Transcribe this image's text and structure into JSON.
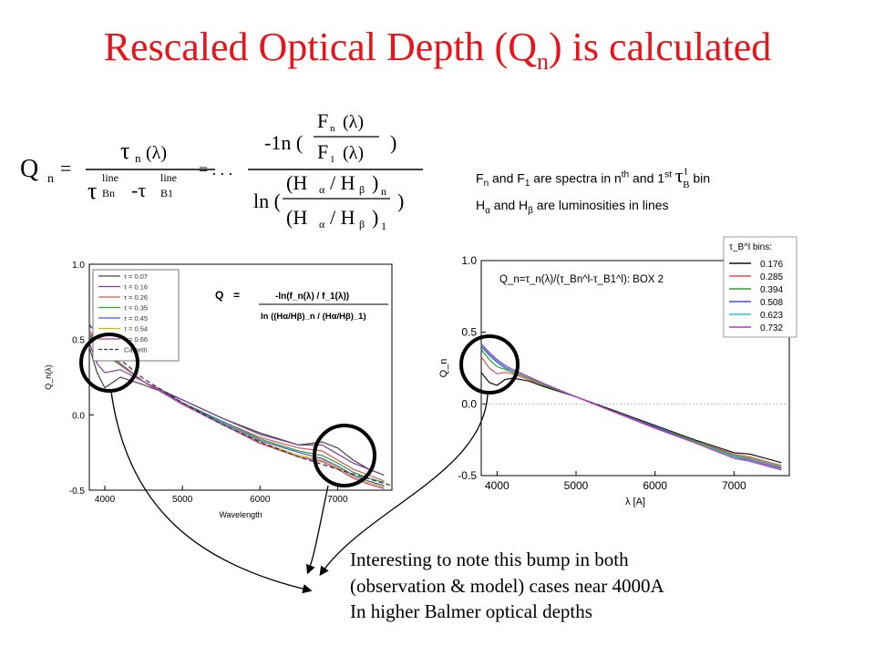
{
  "slide": {
    "title_main": "Rescaled Optical Depth (Q",
    "title_sub": "n",
    "title_end": ") is calculated"
  },
  "formula": {
    "lhs": "Q",
    "lhs_sub": "n",
    "num1": "τ",
    "num1_sub": "n",
    "num1_arg": "(λ)",
    "den1_a": "τ",
    "den1_a_sup": "line",
    "den1_a_sub": "Bn",
    "den1_minus": "-τ",
    "den1_b_sup": "line",
    "den1_b_sub": "B1",
    "eq": "=",
    "eq_dots": "= . . .",
    "num2_prefix": "-1n (",
    "num2_top": "F",
    "num2_top_sub": "n",
    "num2_top_arg": "(λ)",
    "num2_bot": "F",
    "num2_bot_sub": "1",
    "num2_bot_arg": "(λ)",
    "num2_close": ")",
    "den2_prefix": "ln (",
    "den2_top": "(H",
    "den2_top_a": "α",
    "den2_top_slash": "/ H",
    "den2_top_b": "β",
    "den2_top_close": ")",
    "den2_top_sub": "n",
    "den2_bot": "(H",
    "den2_bot_a": "α",
    "den2_bot_slash": "/ H",
    "den2_bot_b": "β",
    "den2_bot_close": ")",
    "den2_bot_sub": "1",
    "den2_close": ")"
  },
  "note": {
    "line1_a": "F",
    "line1_a_sub": "n",
    "line1_b": " and F",
    "line1_b_sub": "1",
    "line1_c": " are spectra in n",
    "line1_c_sup": "th",
    "line1_d": " and 1",
    "line1_d_sup": "st",
    "tau_sym": "τ",
    "tau_sup": "1",
    "tau_sub": "B",
    "line1_e": "bin",
    "line2_a": "H",
    "line2_a_sub": "α",
    "line2_b": " and H",
    "line2_b_sub": "β",
    "line2_c": " are luminosities in lines"
  },
  "bottom_text": {
    "line1": "Interesting to note this bump in both",
    "line2": "(observation & model) cases near 4000A",
    "line3": "In higher Balmer optical depths"
  },
  "colors": {
    "title": "#e8141b",
    "annotation_circle": "#000000"
  },
  "chart_data": [
    {
      "type": "line",
      "title": "",
      "xlabel": "Wavelength",
      "ylabel": "Q_n(λ)",
      "xlim": [
        3800,
        7700
      ],
      "ylim": [
        -0.5,
        1.0
      ],
      "xticks": [
        "4000",
        "5000",
        "6000",
        "7000"
      ],
      "yticks": [
        "1.0",
        "0.5",
        "0.0",
        "-0.5"
      ],
      "inset_formula": {
        "q": "Q",
        "eq": "=",
        "num": "-ln(f_n(λ) / f_1(λ))",
        "den": "ln ((Hα/Hβ)_n / (Hα/Hβ)_1)"
      },
      "legend": {
        "position": "top-left",
        "entries": [
          "τ = 0.07",
          "τ = 0.16",
          "τ = 0.26",
          "τ = 0.35",
          "τ = 0.45",
          "τ = 0.54",
          "τ = 0.66",
          "Calzetti"
        ]
      },
      "series": [
        {
          "name": "0.07",
          "color": "#444444",
          "x": [
            3800,
            3900,
            4000,
            4200,
            4500,
            5000,
            5500,
            6000,
            6500,
            6800,
            7000,
            7200,
            7400,
            7600
          ],
          "y": [
            0.45,
            0.28,
            0.18,
            0.25,
            0.2,
            0.1,
            -0.02,
            -0.12,
            -0.2,
            -0.18,
            -0.22,
            -0.3,
            -0.36,
            -0.4
          ]
        },
        {
          "name": "0.16",
          "color": "#7a3f9a",
          "x": [
            3800,
            3900,
            4000,
            4200,
            4500,
            5000,
            5500,
            6000,
            6500,
            6800,
            7000,
            7200,
            7400,
            7600
          ],
          "y": [
            0.48,
            0.34,
            0.28,
            0.3,
            0.22,
            0.1,
            -0.02,
            -0.13,
            -0.2,
            -0.2,
            -0.26,
            -0.32,
            -0.36,
            -0.4
          ]
        },
        {
          "name": "0.26",
          "color": "#d9534f",
          "x": [
            3800,
            3900,
            4000,
            4200,
            4500,
            5000,
            5500,
            6000,
            6500,
            6800,
            7000,
            7200,
            7400,
            7600
          ],
          "y": [
            0.52,
            0.44,
            0.4,
            0.33,
            0.22,
            0.08,
            -0.04,
            -0.15,
            -0.22,
            -0.24,
            -0.3,
            -0.36,
            -0.4,
            -0.44
          ]
        },
        {
          "name": "0.35",
          "color": "#2e9e3e",
          "x": [
            3800,
            3900,
            4000,
            4200,
            4500,
            5000,
            5500,
            6000,
            6500,
            6800,
            7000,
            7200,
            7400,
            7600
          ],
          "y": [
            0.53,
            0.46,
            0.41,
            0.33,
            0.22,
            0.08,
            -0.04,
            -0.16,
            -0.24,
            -0.27,
            -0.32,
            -0.38,
            -0.42,
            -0.45
          ]
        },
        {
          "name": "0.45",
          "color": "#3a5bd9",
          "x": [
            3800,
            3900,
            4000,
            4200,
            4500,
            5000,
            5500,
            6000,
            6500,
            6800,
            7000,
            7200,
            7400,
            7600
          ],
          "y": [
            0.54,
            0.47,
            0.42,
            0.34,
            0.22,
            0.08,
            -0.05,
            -0.17,
            -0.25,
            -0.29,
            -0.34,
            -0.4,
            -0.44,
            -0.47
          ]
        },
        {
          "name": "0.54",
          "color": "#d6b400",
          "x": [
            3800,
            3900,
            4000,
            4200,
            4500,
            5000,
            5500,
            6000,
            6500,
            6800,
            7000,
            7200,
            7400,
            7600
          ],
          "y": [
            0.55,
            0.48,
            0.42,
            0.34,
            0.22,
            0.07,
            -0.06,
            -0.18,
            -0.27,
            -0.3,
            -0.35,
            -0.41,
            -0.45,
            -0.48
          ]
        },
        {
          "name": "0.66",
          "color": "#c0399b",
          "x": [
            3800,
            3900,
            4000,
            4200,
            4500,
            5000,
            5500,
            6000,
            6500,
            6800,
            7000,
            7200,
            7400,
            7600
          ],
          "y": [
            0.56,
            0.49,
            0.43,
            0.34,
            0.22,
            0.07,
            -0.06,
            -0.19,
            -0.28,
            -0.31,
            -0.36,
            -0.42,
            -0.46,
            -0.49
          ]
        },
        {
          "name": "Calzetti",
          "color": "#333333",
          "dashed": true,
          "x": [
            3800,
            4000,
            4500,
            5000,
            5500,
            6000,
            6500,
            7000,
            7500,
            7700
          ],
          "y": [
            0.6,
            0.45,
            0.24,
            0.08,
            -0.06,
            -0.18,
            -0.28,
            -0.36,
            -0.44,
            -0.47
          ]
        }
      ]
    },
    {
      "type": "line",
      "title": "Q_n=τ_n(λ)/(τ_Bn^l-τ_B1^l): BOX 2",
      "xlabel": "λ [A]",
      "ylabel": "Q_n",
      "xlim": [
        3800,
        7700
      ],
      "ylim": [
        -0.5,
        1.0
      ],
      "xticks": [
        "4000",
        "5000",
        "6000",
        "7000"
      ],
      "yticks": [
        "1.0",
        "0.5",
        "0.0",
        "-0.5"
      ],
      "legend": {
        "position": "top-right",
        "title": "τ_B^l bins:",
        "entries": [
          "0.176",
          "0.285",
          "0.394",
          "0.508",
          "0.623",
          "0.732"
        ]
      },
      "series": [
        {
          "name": "0.176",
          "color": "#111111",
          "x": [
            3800,
            3900,
            4000,
            4100,
            4200,
            4400,
            4600,
            5000,
            5500,
            6000,
            6500,
            7000,
            7200,
            7400,
            7600
          ],
          "y": [
            0.22,
            0.15,
            0.13,
            0.17,
            0.18,
            0.16,
            0.12,
            0.05,
            -0.05,
            -0.15,
            -0.25,
            -0.34,
            -0.35,
            -0.38,
            -0.41
          ]
        },
        {
          "name": "0.285",
          "color": "#e05050",
          "x": [
            3800,
            3900,
            4000,
            4100,
            4200,
            4400,
            4600,
            5000,
            5500,
            6000,
            6500,
            7000,
            7200,
            7400,
            7600
          ],
          "y": [
            0.33,
            0.25,
            0.21,
            0.22,
            0.21,
            0.17,
            0.13,
            0.05,
            -0.06,
            -0.16,
            -0.26,
            -0.35,
            -0.37,
            -0.4,
            -0.43
          ]
        },
        {
          "name": "0.394",
          "color": "#2ca02c",
          "x": [
            3800,
            3900,
            4000,
            4100,
            4200,
            4400,
            4600,
            5000,
            5500,
            6000,
            6500,
            7000,
            7200,
            7400,
            7600
          ],
          "y": [
            0.38,
            0.31,
            0.26,
            0.24,
            0.22,
            0.18,
            0.13,
            0.05,
            -0.06,
            -0.16,
            -0.26,
            -0.36,
            -0.38,
            -0.41,
            -0.44
          ]
        },
        {
          "name": "0.508",
          "color": "#4050d0",
          "x": [
            3800,
            3900,
            4000,
            4100,
            4200,
            4400,
            4600,
            5000,
            5500,
            6000,
            6500,
            7000,
            7200,
            7400,
            7600
          ],
          "y": [
            0.4,
            0.34,
            0.29,
            0.25,
            0.23,
            0.19,
            0.14,
            0.05,
            -0.06,
            -0.16,
            -0.27,
            -0.37,
            -0.39,
            -0.42,
            -0.45
          ]
        },
        {
          "name": "0.623",
          "color": "#30c0d0",
          "x": [
            3800,
            3900,
            4000,
            4100,
            4200,
            4400,
            4600,
            5000,
            5500,
            6000,
            6500,
            7000,
            7200,
            7400,
            7600
          ],
          "y": [
            0.41,
            0.35,
            0.3,
            0.26,
            0.23,
            0.19,
            0.14,
            0.05,
            -0.06,
            -0.17,
            -0.27,
            -0.37,
            -0.4,
            -0.43,
            -0.46
          ]
        },
        {
          "name": "0.732",
          "color": "#c030c0",
          "x": [
            3800,
            3900,
            4000,
            4100,
            4200,
            4400,
            4600,
            5000,
            5500,
            6000,
            6500,
            7000,
            7200,
            7400,
            7600
          ],
          "y": [
            0.42,
            0.36,
            0.31,
            0.27,
            0.24,
            0.19,
            0.14,
            0.05,
            -0.06,
            -0.17,
            -0.27,
            -0.38,
            -0.4,
            -0.43,
            -0.46
          ]
        }
      ]
    }
  ]
}
